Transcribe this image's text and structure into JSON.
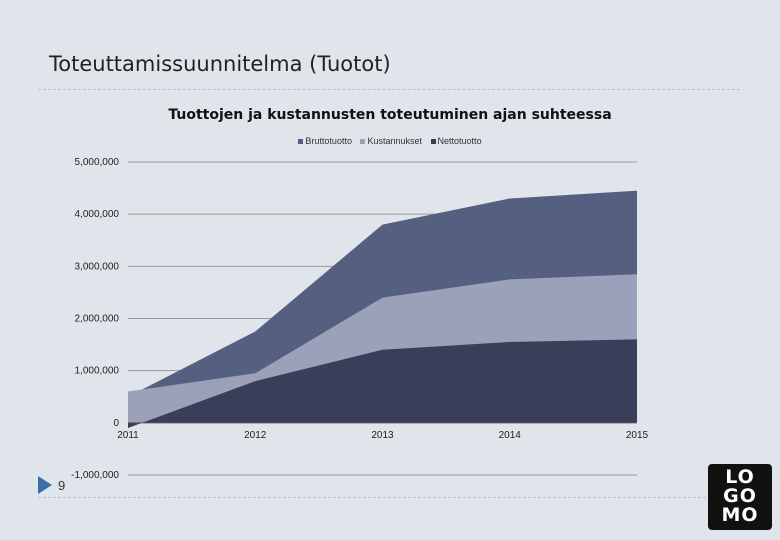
{
  "slide": {
    "title": "Toteuttamissuunnitelma (Tuotot)",
    "page_number": "9",
    "logo_lines": [
      "LO",
      "GO",
      "MO"
    ]
  },
  "colors": {
    "background": "#dfe5eb",
    "bruttotuotto": "#555f7f",
    "kustannukset": "#9aa1b9",
    "nettotuotto": "#3a3e58"
  },
  "chart_data": {
    "type": "area",
    "title": "Tuottojen ja kustannusten toteutuminen ajan suhteessa",
    "x": [
      "2011",
      "2012",
      "2013",
      "2014",
      "2015"
    ],
    "y_ticks": [
      "5,000,000",
      "4,000,000",
      "3,000,000",
      "2,000,000",
      "1,000,000",
      "0",
      "-1,000,000"
    ],
    "ylim": [
      -1000000,
      5000000
    ],
    "grid": true,
    "legend_position": "top",
    "series": [
      {
        "name": "Bruttotuotto",
        "values": [
          500000,
          1750000,
          3800000,
          4300000,
          4450000
        ]
      },
      {
        "name": "Kustannukset",
        "values": [
          600000,
          950000,
          2400000,
          2750000,
          2850000
        ]
      },
      {
        "name": "Nettotuotto",
        "values": [
          -100000,
          800000,
          1400000,
          1550000,
          1600000
        ]
      }
    ]
  }
}
